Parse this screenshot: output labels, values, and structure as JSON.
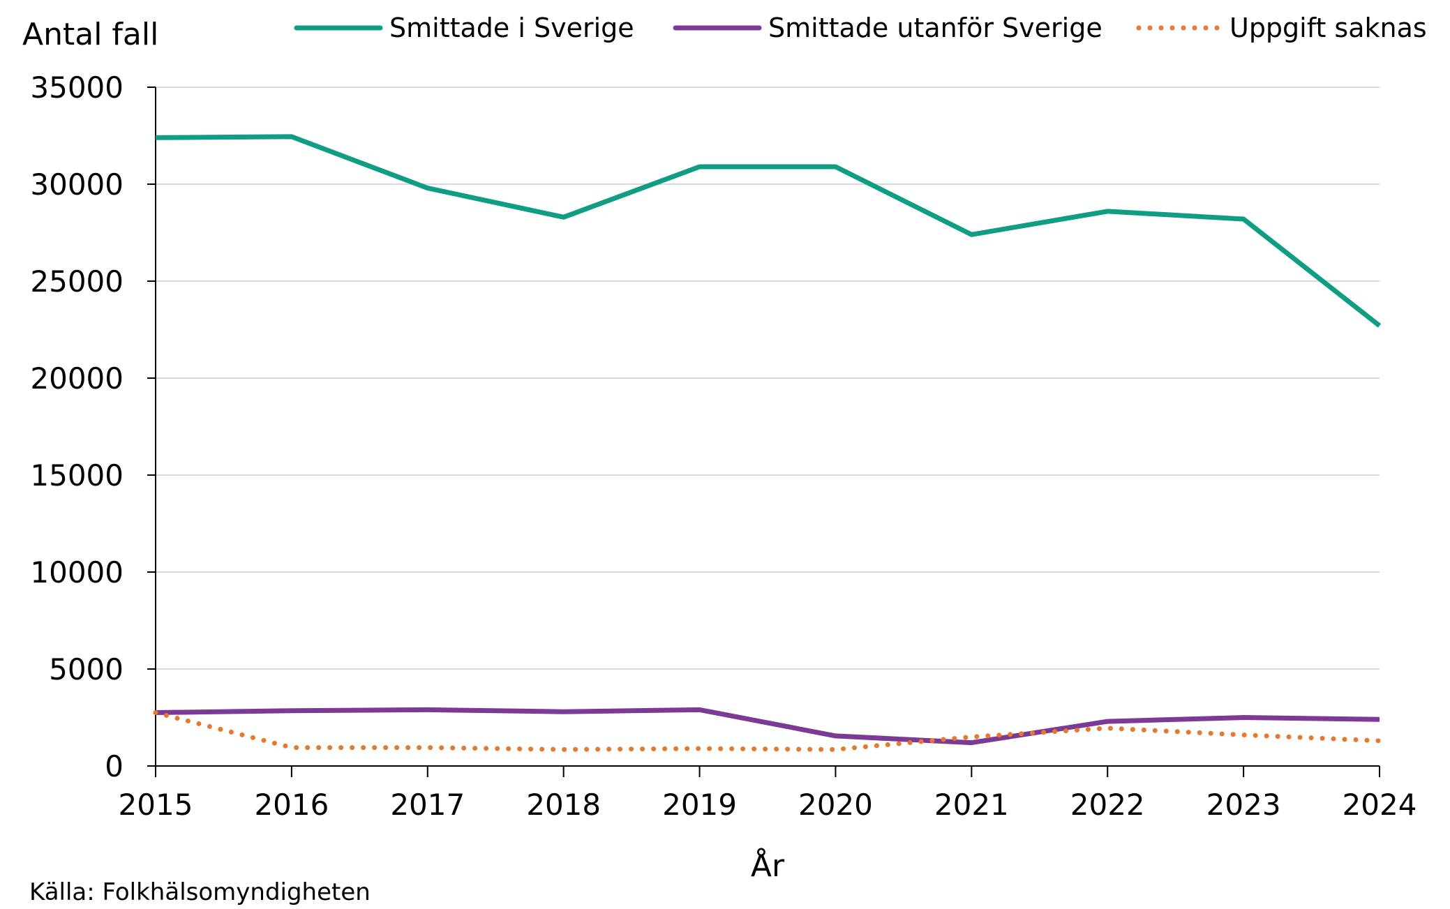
{
  "chart_data": {
    "type": "line",
    "title": "",
    "ylabel": "Antal fall",
    "xlabel": "År",
    "source": "Källa: Folkhälsomyndigheten",
    "x": [
      "2015",
      "2016",
      "2017",
      "2018",
      "2019",
      "2020",
      "2021",
      "2022",
      "2023",
      "2024"
    ],
    "ylim": [
      0,
      35000
    ],
    "yticks": [
      0,
      5000,
      10000,
      15000,
      20000,
      25000,
      30000,
      35000
    ],
    "ytick_labels": [
      "0",
      "5000",
      "10000",
      "15000",
      "20000",
      "25000",
      "30000",
      "35000"
    ],
    "grid": true,
    "legend": "top",
    "series": [
      {
        "key": "smittade-i-sverige",
        "name": "Smittade i Sverige",
        "color": "#0f9d84",
        "style": "solid",
        "values": [
          32400,
          32450,
          29800,
          28300,
          30900,
          30900,
          27400,
          28600,
          28200,
          22700
        ]
      },
      {
        "key": "smittade-utanfor-sverige",
        "name": "Smittade utanför Sverige",
        "color": "#7b3a96",
        "style": "solid",
        "values": [
          2750,
          2850,
          2900,
          2800,
          2900,
          1550,
          1200,
          2300,
          2500,
          2400
        ]
      },
      {
        "key": "uppgift-saknas",
        "name": "Uppgift saknas",
        "color": "#e6782f",
        "style": "dotted",
        "values": [
          2750,
          950,
          950,
          850,
          900,
          850,
          1500,
          1950,
          1600,
          1300
        ]
      }
    ]
  }
}
